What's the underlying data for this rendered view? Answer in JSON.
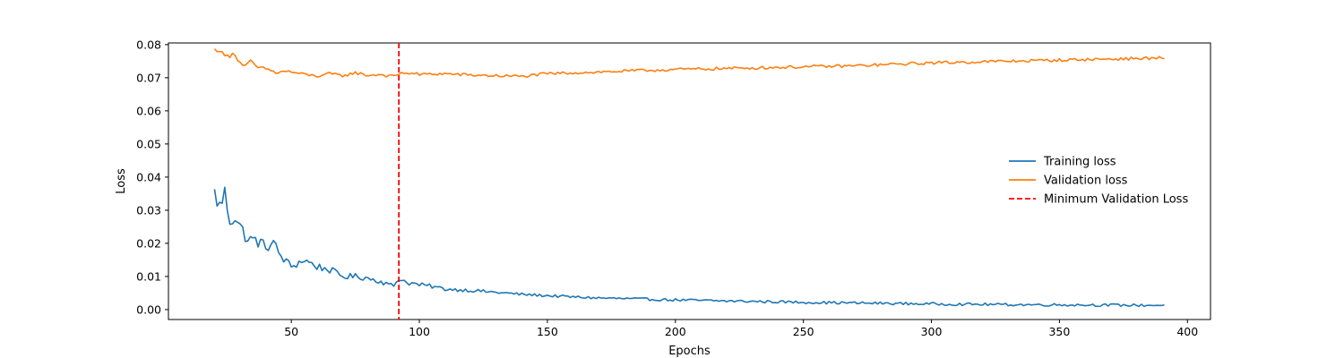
{
  "chart_data": {
    "type": "line",
    "xlabel": "Epochs",
    "ylabel": "Loss",
    "xlim": [
      2,
      409
    ],
    "ylim": [
      -0.003,
      0.0805
    ],
    "x_ticks": [
      50,
      100,
      150,
      200,
      250,
      300,
      350,
      400
    ],
    "y_ticks": [
      0.0,
      0.01,
      0.02,
      0.03,
      0.04,
      0.05,
      0.06,
      0.07,
      0.08
    ],
    "y_tick_labels": [
      "0.00",
      "0.01",
      "0.02",
      "0.03",
      "0.04",
      "0.05",
      "0.06",
      "0.07",
      "0.08"
    ],
    "x_range": [
      20,
      391
    ],
    "grid": false,
    "legend_position": "center-right",
    "series": [
      {
        "name": "Training loss",
        "color": "#1f77b4",
        "x": [
          20,
          22,
          24,
          26,
          28,
          30,
          33,
          36,
          40,
          43,
          46,
          50,
          55,
          60,
          65,
          70,
          75,
          80,
          85,
          88,
          90,
          92,
          95,
          100,
          105,
          110,
          115,
          120,
          130,
          140,
          150,
          160,
          170,
          180,
          200,
          220,
          250,
          270,
          300,
          330,
          360,
          380,
          391
        ],
        "y": [
          0.035,
          0.031,
          0.035,
          0.027,
          0.028,
          0.025,
          0.021,
          0.021,
          0.019,
          0.02,
          0.016,
          0.013,
          0.015,
          0.013,
          0.012,
          0.01,
          0.01,
          0.0095,
          0.0085,
          0.0075,
          0.0072,
          0.0095,
          0.0082,
          0.0075,
          0.007,
          0.0062,
          0.006,
          0.0058,
          0.0052,
          0.0046,
          0.0042,
          0.0038,
          0.0035,
          0.0033,
          0.0029,
          0.0026,
          0.0022,
          0.002,
          0.0017,
          0.0015,
          0.0014,
          0.0013,
          0.0013
        ]
      },
      {
        "name": "Validation loss",
        "color": "#ff7f0e",
        "x": [
          20,
          22,
          24,
          26,
          27,
          30,
          32,
          34,
          37,
          40,
          44,
          48,
          55,
          60,
          65,
          70,
          75,
          80,
          85,
          88,
          90,
          92,
          95,
          100,
          110,
          120,
          130,
          140,
          150,
          160,
          170,
          180,
          200,
          220,
          250,
          270,
          300,
          330,
          360,
          380,
          391
        ],
        "y": [
          0.0785,
          0.0782,
          0.0767,
          0.0765,
          0.0778,
          0.0745,
          0.0735,
          0.075,
          0.073,
          0.0728,
          0.0715,
          0.072,
          0.071,
          0.0705,
          0.0712,
          0.0706,
          0.0715,
          0.0707,
          0.071,
          0.0705,
          0.0704,
          0.0712,
          0.0715,
          0.071,
          0.0712,
          0.0708,
          0.0706,
          0.0704,
          0.0712,
          0.0715,
          0.0717,
          0.072,
          0.0725,
          0.0728,
          0.0733,
          0.0736,
          0.0745,
          0.075,
          0.0755,
          0.0758,
          0.076
        ]
      },
      {
        "name": "Minimum Validation Loss",
        "color": "#ff0000",
        "style": "dashed",
        "type": "vline",
        "x": 92
      }
    ]
  }
}
